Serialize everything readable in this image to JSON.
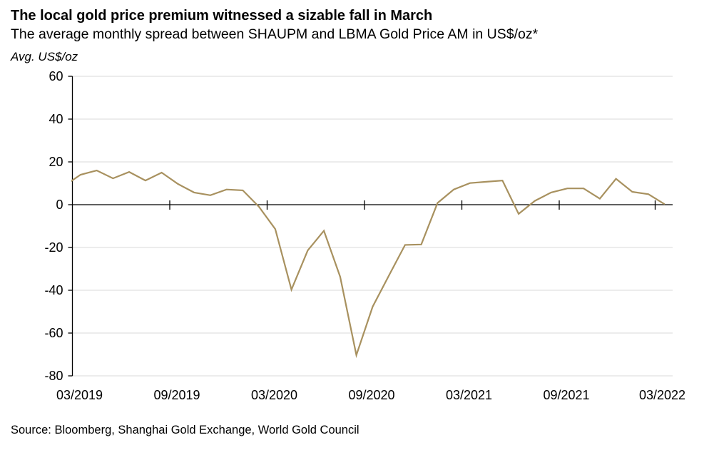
{
  "chart_data": {
    "type": "line",
    "title": "The local gold price premium witnessed a sizable fall in March",
    "subtitle": "The average monthly spread between SHAUPM and LBMA Gold Price AM in US$/oz*",
    "ylabel": "Avg. US$/oz",
    "xlabel": "",
    "ylim": [
      -80,
      60
    ],
    "yticks": [
      60,
      40,
      20,
      0,
      -20,
      -40,
      -60,
      -80
    ],
    "xticks": [
      "03/2019",
      "09/2019",
      "03/2020",
      "09/2020",
      "03/2021",
      "09/2021",
      "03/2022"
    ],
    "grid": true,
    "line_color": "#a8915f",
    "series": [
      {
        "x": [
          "2019-02",
          "2019-03",
          "2019-04",
          "2019-05",
          "2019-06",
          "2019-07",
          "2019-08",
          "2019-09",
          "2019-10",
          "2019-11",
          "2019-12",
          "2020-01",
          "2020-02",
          "2020-03",
          "2020-04",
          "2020-05",
          "2020-06",
          "2020-07",
          "2020-08",
          "2020-09",
          "2020-10",
          "2020-11",
          "2020-12",
          "2021-01",
          "2021-02",
          "2021-03",
          "2021-04",
          "2021-05",
          "2021-06",
          "2021-07",
          "2021-08",
          "2021-09",
          "2021-10",
          "2021-11",
          "2021-12",
          "2022-01",
          "2022-02",
          "2022-03"
        ],
        "values": [
          8.8,
          14,
          16,
          12.3,
          15.3,
          11.3,
          15,
          9.7,
          5.7,
          4.4,
          7.1,
          6.7,
          -1,
          -11.4,
          -39.7,
          -21.4,
          -12.2,
          -33.7,
          -70.3,
          -47.7,
          -33.2,
          -18.8,
          -18.6,
          0.8,
          7.1,
          10.1,
          10.7,
          11.3,
          -4.3,
          1.8,
          5.7,
          7.6,
          7.6,
          2.8,
          12.1,
          6,
          4.9,
          0.2
        ]
      }
    ]
  },
  "source": "Source: Bloomberg, Shanghai Gold Exchange, World Gold Council"
}
